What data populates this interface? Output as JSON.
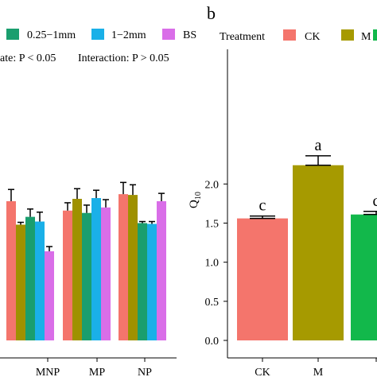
{
  "left_panel": {
    "legend": [
      {
        "label": "0.25−1mm",
        "color": "#1a9e6e"
      },
      {
        "label": "1−2mm",
        "color": "#1ab0e8"
      },
      {
        "label": "BS",
        "color": "#d96ee8"
      }
    ],
    "stats_text_1": "ate: P < 0.05",
    "stats_text_2": "Interaction: P > 0.05",
    "chart_data": {
      "type": "bar",
      "categories": [
        "MNP",
        "MP",
        "NP"
      ],
      "series": [
        {
          "color": "#f4756c",
          "values": [
            1.78,
            1.66,
            1.87
          ],
          "errors": [
            0.15,
            0.1,
            0.15
          ]
        },
        {
          "color": "#9f9100",
          "values": [
            1.48,
            1.81,
            1.86
          ],
          "errors": [
            0.03,
            0.13,
            0.13
          ]
        },
        {
          "color": "#1a9e6e",
          "values": [
            1.58,
            1.63,
            1.5
          ],
          "errors": [
            0.1,
            0.1,
            0.02
          ]
        },
        {
          "color": "#1ab0e8",
          "values": [
            1.52,
            1.82,
            1.49
          ],
          "errors": [
            0.12,
            0.1,
            0.03
          ]
        },
        {
          "color": "#d96ee8",
          "values": [
            1.14,
            1.7,
            1.78
          ],
          "errors": [
            0.06,
            0.1,
            0.1
          ]
        }
      ],
      "ylim": [
        0.0,
        2.5
      ]
    }
  },
  "right_panel": {
    "panel_label": "b",
    "legend_title": "Treatment",
    "legend": [
      {
        "label": "CK",
        "color": "#f4756c"
      },
      {
        "label": "M",
        "color": "#a69a00"
      },
      {
        "label": "",
        "color": "#12b84b"
      }
    ],
    "chart_data": {
      "type": "bar",
      "categories": [
        "CK",
        "M",
        ""
      ],
      "values": [
        1.56,
        2.24,
        1.61
      ],
      "errors": [
        0.03,
        0.12,
        0.04
      ],
      "letters": [
        "c",
        "a",
        "c"
      ],
      "colors": [
        "#f4756c",
        "#a69a00",
        "#12b84b"
      ],
      "ylabel": "Q10",
      "yticks": [
        "0.0",
        "0.5",
        "1.0",
        "1.5",
        "2.0"
      ],
      "ylim": [
        0.0,
        2.5
      ]
    }
  }
}
